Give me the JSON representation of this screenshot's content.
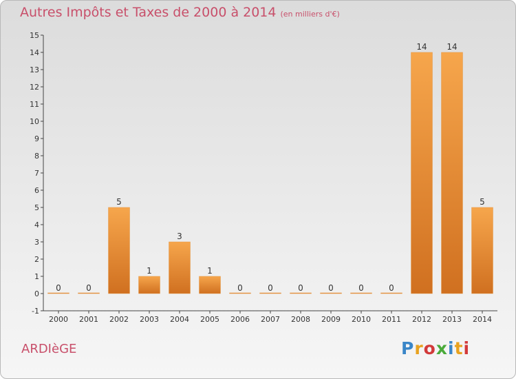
{
  "title": "Autres Impôts et Taxes de 2000 à 2014",
  "unit_label": "(en milliers d'€)",
  "commune": "ARDIèGE",
  "logo": "Proxiti",
  "colors": {
    "bar_light": "#f6a64c",
    "bar_dark": "#d07020",
    "title": "#c84f6a"
  },
  "chart_data": {
    "type": "bar",
    "categories": [
      "2000",
      "2001",
      "2002",
      "2003",
      "2004",
      "2005",
      "2006",
      "2007",
      "2008",
      "2009",
      "2010",
      "2011",
      "2012",
      "2013",
      "2014"
    ],
    "values": [
      0,
      0,
      5,
      1,
      3,
      1,
      0,
      0,
      0,
      0,
      0,
      0,
      14,
      14,
      5
    ],
    "ylim": [
      -1,
      15
    ],
    "yticks": [
      -1,
      0,
      1,
      2,
      3,
      4,
      5,
      6,
      7,
      8,
      9,
      10,
      11,
      12,
      13,
      14,
      15
    ],
    "grid": false,
    "xlabel": "",
    "ylabel": ""
  }
}
